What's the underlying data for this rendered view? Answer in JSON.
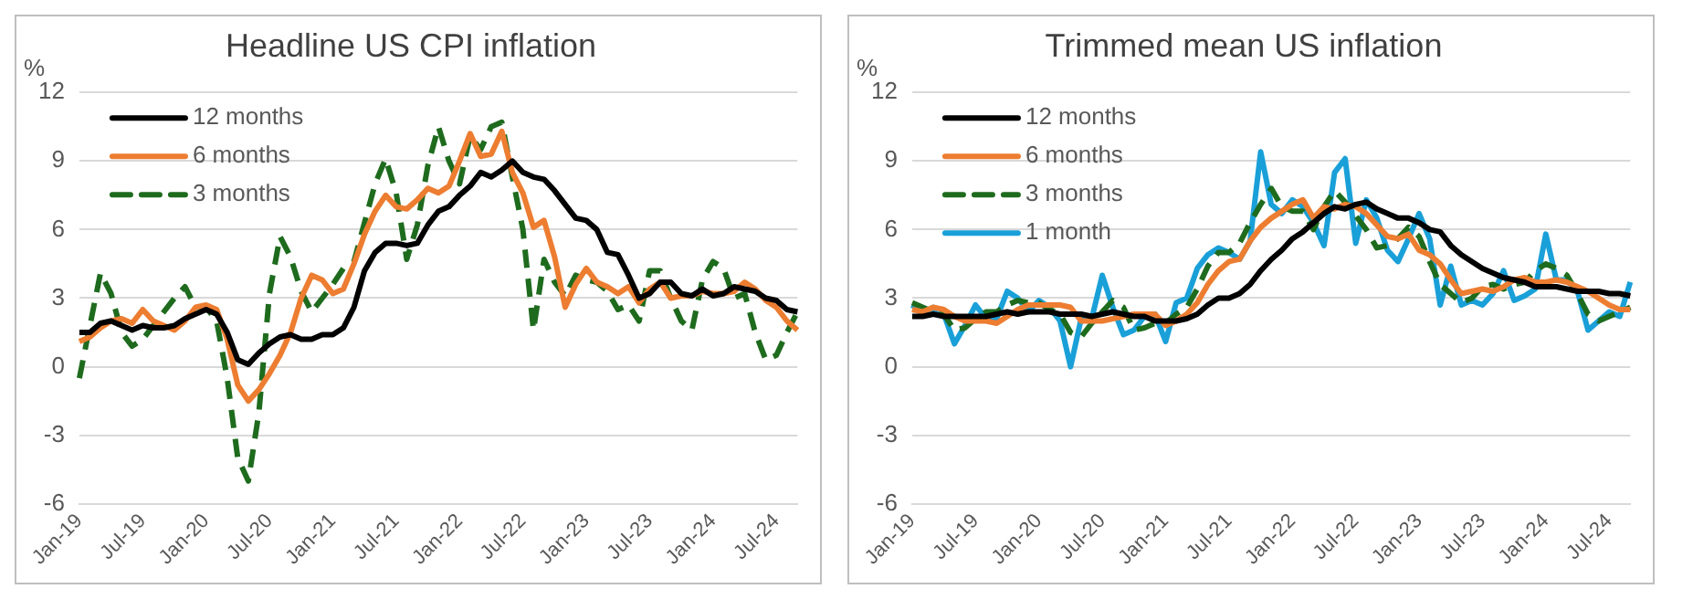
{
  "chart_data": [
    {
      "type": "line",
      "title": "Headline US CPI inflation",
      "ylabel": "%",
      "categories": [
        "Jan-19",
        null,
        null,
        null,
        null,
        null,
        "Jul-19",
        null,
        null,
        null,
        null,
        null,
        "Jan-20",
        null,
        null,
        null,
        null,
        null,
        "Jul-20",
        null,
        null,
        null,
        null,
        null,
        "Jan-21",
        null,
        null,
        null,
        null,
        null,
        "Jul-21",
        null,
        null,
        null,
        null,
        null,
        "Jan-22",
        null,
        null,
        null,
        null,
        null,
        "Jul-22",
        null,
        null,
        null,
        null,
        null,
        "Jan-23",
        null,
        null,
        null,
        null,
        null,
        "Jul-23",
        null,
        null,
        null,
        null,
        null,
        "Jan-24",
        null,
        null,
        null,
        null,
        null,
        "Jul-24",
        null,
        null
      ],
      "series": [
        {
          "name": "12 months",
          "color": "#000000",
          "line_style": "solid",
          "values": [
            1.5,
            1.5,
            1.9,
            2.0,
            1.8,
            1.6,
            1.8,
            1.7,
            1.7,
            1.8,
            2.1,
            2.3,
            2.5,
            2.3,
            1.5,
            0.3,
            0.1,
            0.6,
            1.0,
            1.3,
            1.4,
            1.2,
            1.2,
            1.4,
            1.4,
            1.7,
            2.6,
            4.2,
            5.0,
            5.4,
            5.4,
            5.3,
            5.4,
            6.2,
            6.8,
            7.0,
            7.5,
            7.9,
            8.5,
            8.3,
            8.6,
            9.0,
            8.5,
            8.3,
            8.2,
            7.7,
            7.1,
            6.5,
            6.4,
            6.0,
            5.0,
            4.9,
            4.0,
            3.0,
            3.2,
            3.7,
            3.7,
            3.2,
            3.1,
            3.4,
            3.1,
            3.2,
            3.5,
            3.4,
            3.3,
            3.0,
            2.9,
            2.5,
            2.4
          ]
        },
        {
          "name": "6 months",
          "color": "#ed7d31",
          "line_style": "solid",
          "values": [
            1.1,
            1.3,
            1.7,
            2.0,
            2.1,
            1.9,
            2.5,
            2.0,
            1.8,
            1.6,
            2.0,
            2.6,
            2.7,
            2.5,
            1.2,
            -0.8,
            -1.5,
            -1.0,
            -0.3,
            0.5,
            1.5,
            3.0,
            4.0,
            3.8,
            3.2,
            3.4,
            4.5,
            5.8,
            6.8,
            7.5,
            7.0,
            6.9,
            7.3,
            7.8,
            7.6,
            7.9,
            9.0,
            10.2,
            9.2,
            9.3,
            10.3,
            8.5,
            7.6,
            6.1,
            6.4,
            4.8,
            2.6,
            3.6,
            4.3,
            3.7,
            3.5,
            3.2,
            3.5,
            2.8,
            3.4,
            3.7,
            3.0,
            3.1,
            3.1,
            3.3,
            3.2,
            3.2,
            3.3,
            3.7,
            3.4,
            2.9,
            2.6,
            2.0,
            1.6
          ]
        },
        {
          "name": "3 months",
          "color": "#1e6b1e",
          "line_style": "dashed",
          "values": [
            -0.5,
            1.8,
            4.1,
            3.2,
            1.5,
            0.9,
            1.2,
            1.8,
            2.4,
            3.0,
            3.5,
            2.6,
            2.6,
            2.0,
            -0.5,
            -4.0,
            -5.0,
            -2.0,
            3.2,
            5.7,
            4.8,
            3.3,
            2.4,
            3.0,
            3.6,
            4.3,
            4.6,
            6.3,
            8.0,
            9.1,
            7.6,
            4.7,
            6.2,
            8.8,
            10.5,
            9.0,
            8.0,
            10.1,
            9.5,
            10.5,
            10.7,
            8.3,
            6.0,
            1.6,
            4.7,
            3.7,
            3.1,
            4.0,
            3.8,
            3.7,
            3.3,
            2.5,
            2.7,
            2.0,
            4.2,
            4.2,
            3.0,
            2.0,
            1.6,
            3.8,
            4.6,
            4.3,
            3.0,
            3.2,
            1.5,
            0.3,
            0.5,
            1.5,
            2.4
          ]
        }
      ],
      "ylim": [
        -6,
        12
      ],
      "yticks": [
        -6,
        -3,
        0,
        3,
        6,
        9,
        12
      ],
      "grid": "y",
      "legend": "top left"
    },
    {
      "type": "line",
      "title": "Trimmed mean US inflation",
      "ylabel": "%",
      "categories": [
        "Jan-19",
        null,
        null,
        null,
        null,
        null,
        "Jul-19",
        null,
        null,
        null,
        null,
        null,
        "Jan-20",
        null,
        null,
        null,
        null,
        null,
        "Jul-20",
        null,
        null,
        null,
        null,
        null,
        "Jan-21",
        null,
        null,
        null,
        null,
        null,
        "Jul-21",
        null,
        null,
        null,
        null,
        null,
        "Jan-22",
        null,
        null,
        null,
        null,
        null,
        "Jul-22",
        null,
        null,
        null,
        null,
        null,
        "Jan-23",
        null,
        null,
        null,
        null,
        null,
        "Jul-23",
        null,
        null,
        null,
        null,
        null,
        "Jan-24",
        null,
        null,
        null,
        null,
        null,
        "Jul-24",
        null,
        null
      ],
      "series": [
        {
          "name": "12 months",
          "color": "#000000",
          "line_style": "solid",
          "values": [
            2.2,
            2.2,
            2.3,
            2.2,
            2.2,
            2.2,
            2.2,
            2.2,
            2.3,
            2.4,
            2.3,
            2.4,
            2.4,
            2.4,
            2.3,
            2.3,
            2.3,
            2.2,
            2.3,
            2.4,
            2.3,
            2.2,
            2.2,
            2.0,
            2.0,
            2.0,
            2.1,
            2.3,
            2.7,
            3.0,
            3.0,
            3.2,
            3.6,
            4.2,
            4.7,
            5.1,
            5.6,
            5.9,
            6.3,
            6.7,
            7.0,
            6.9,
            7.1,
            7.2,
            6.9,
            6.7,
            6.5,
            6.5,
            6.3,
            6.0,
            5.9,
            5.3,
            4.9,
            4.6,
            4.3,
            4.1,
            3.9,
            3.8,
            3.7,
            3.5,
            3.5,
            3.5,
            3.4,
            3.3,
            3.3,
            3.3,
            3.2,
            3.2,
            3.1
          ]
        },
        {
          "name": "6 months",
          "color": "#ed7d31",
          "line_style": "solid",
          "values": [
            2.5,
            2.4,
            2.6,
            2.5,
            2.2,
            2.0,
            2.0,
            2.0,
            1.9,
            2.2,
            2.5,
            2.7,
            2.7,
            2.7,
            2.7,
            2.6,
            2.0,
            2.0,
            2.0,
            2.1,
            2.2,
            2.3,
            2.3,
            2.3,
            1.8,
            2.0,
            2.3,
            2.8,
            3.6,
            4.2,
            4.6,
            4.7,
            5.5,
            6.1,
            6.5,
            6.8,
            7.1,
            7.3,
            6.5,
            7.0,
            6.9,
            7.1,
            7.0,
            6.7,
            6.2,
            5.7,
            5.6,
            5.8,
            5.1,
            4.9,
            4.5,
            3.8,
            3.2,
            3.3,
            3.4,
            3.3,
            3.5,
            3.8,
            3.9,
            3.7,
            3.7,
            3.8,
            3.7,
            3.5,
            3.3,
            3.0,
            2.7,
            2.5,
            2.5
          ]
        },
        {
          "name": "3 months",
          "color": "#1e6b1e",
          "line_style": "dashed",
          "values": [
            2.8,
            2.6,
            2.4,
            2.3,
            1.6,
            1.7,
            2.1,
            2.4,
            2.4,
            2.7,
            2.9,
            2.8,
            2.8,
            2.5,
            2.3,
            1.5,
            1.3,
            1.9,
            2.4,
            2.9,
            2.6,
            1.6,
            1.7,
            1.9,
            1.9,
            2.3,
            2.6,
            3.4,
            4.4,
            5.0,
            5.0,
            5.4,
            6.3,
            7.1,
            7.8,
            7.0,
            6.8,
            6.8,
            6.0,
            7.0,
            7.7,
            7.2,
            6.6,
            6.0,
            5.2,
            5.3,
            5.6,
            6.1,
            5.7,
            4.6,
            3.6,
            3.2,
            2.8,
            3.0,
            3.5,
            3.6,
            3.4,
            3.6,
            3.7,
            4.2,
            4.5,
            4.3,
            4.0,
            3.2,
            2.3,
            2.0,
            2.2,
            2.4,
            2.6
          ]
        },
        {
          "name": "1 month",
          "color": "#1aa0d8",
          "line_style": "solid",
          "values": [
            2.7,
            2.3,
            2.6,
            2.3,
            1.0,
            1.8,
            2.7,
            2.1,
            2.1,
            3.3,
            3.0,
            2.4,
            2.9,
            2.6,
            2.0,
            0.0,
            2.1,
            2.1,
            4.0,
            2.6,
            1.4,
            1.6,
            2.2,
            2.3,
            1.1,
            2.8,
            3.0,
            4.3,
            4.9,
            5.2,
            5.0,
            4.7,
            5.5,
            9.4,
            7.1,
            6.7,
            7.3,
            7.0,
            6.3,
            5.3,
            8.5,
            9.1,
            5.4,
            7.3,
            6.5,
            5.1,
            4.6,
            5.6,
            6.7,
            5.6,
            2.7,
            4.4,
            2.7,
            2.9,
            2.7,
            3.2,
            4.2,
            2.9,
            3.1,
            3.4,
            5.8,
            3.8,
            3.8,
            3.3,
            1.6,
            2.0,
            2.4,
            2.2,
            3.7
          ]
        }
      ],
      "ylim": [
        -6,
        12
      ],
      "yticks": [
        -6,
        -3,
        0,
        3,
        6,
        9,
        12
      ],
      "grid": "y",
      "legend": "top left"
    }
  ]
}
